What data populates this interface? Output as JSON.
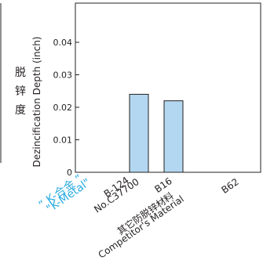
{
  "chart_data": {
    "type": "bar",
    "categories": [
      {
        "lines": [
          "“ K-合金 ”",
          "\"K-Metal\""
        ],
        "highlight": true
      },
      {
        "lines": [
          "B-124",
          "No.C37700"
        ],
        "highlight": false
      },
      {
        "lines": [
          "B16",
          "其它防脱锌材料",
          "Competitor's Material"
        ],
        "highlight": false
      },
      {
        "lines": [
          "B62"
        ],
        "highlight": false
      }
    ],
    "values": [
      null,
      0.024,
      0.022,
      null
    ],
    "ylabel": "Dezincification Depth (inch)",
    "ylabel_cn": [
      "脱",
      "锌",
      "度"
    ],
    "ylim": [
      0,
      0.05
    ],
    "yticks": [
      "0",
      "0.01",
      "0.02",
      "0.03",
      "0.04"
    ],
    "grid": false,
    "bar_color": "#b3d7f0",
    "highlight_color": "#29abe2",
    "text_color": "#231f20"
  }
}
